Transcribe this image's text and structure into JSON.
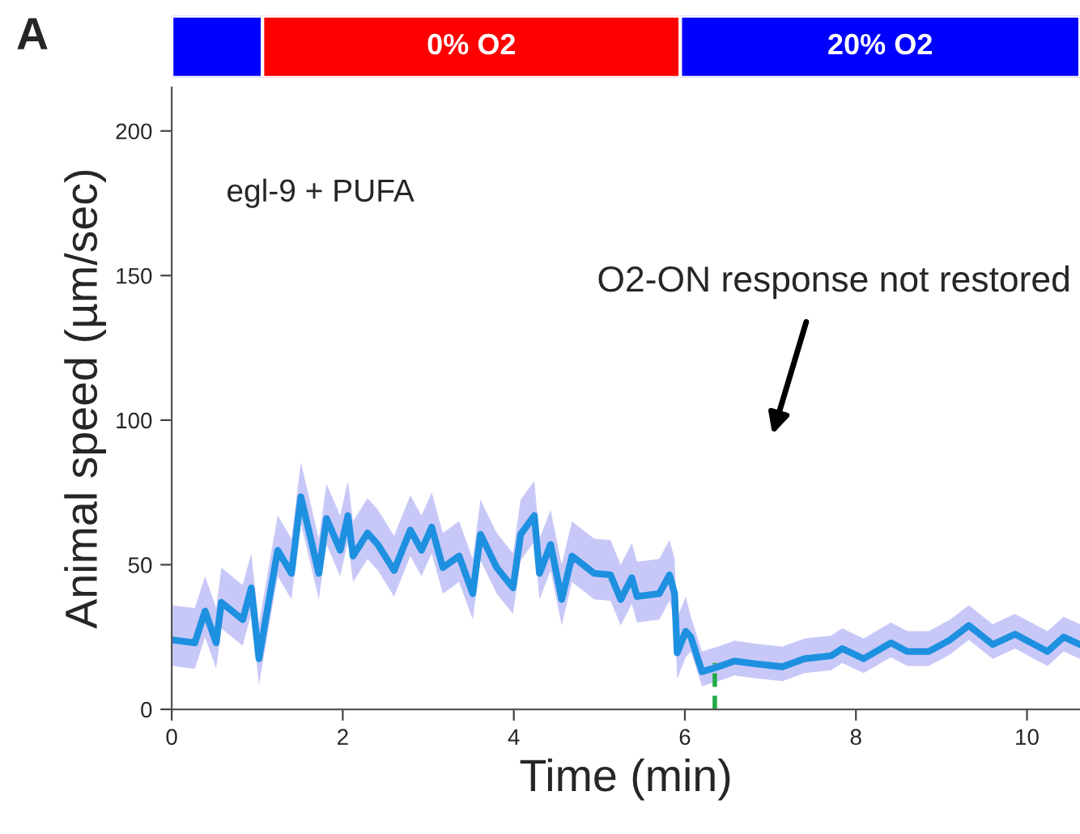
{
  "chart_data": {
    "type": "line",
    "xlabel": "Time (min)",
    "ylabel": "Animal speed (µm/sec)",
    "xlim": [
      0,
      10.62
    ],
    "xticks": [
      0,
      2,
      4,
      6,
      8,
      10
    ],
    "ylim": [
      0,
      215
    ],
    "yticks": [
      0,
      50,
      100,
      150,
      200
    ],
    "grid": false,
    "legend": false,
    "series": [
      {
        "color": "#1e90e0",
        "line_style": "solid",
        "x": [
          0.01,
          0.27,
          0.39,
          0.52,
          0.58,
          0.83,
          0.93,
          1.02,
          1.15,
          1.24,
          1.4,
          1.51,
          1.72,
          1.81,
          1.97,
          2.06,
          2.12,
          2.29,
          2.41,
          2.6,
          2.79,
          2.92,
          3.04,
          3.17,
          3.36,
          3.52,
          3.61,
          3.8,
          3.99,
          4.08,
          4.24,
          4.3,
          4.43,
          4.56,
          4.68,
          4.94,
          5.13,
          5.25,
          5.38,
          5.44,
          5.7,
          5.82,
          5.88,
          5.91,
          6.01,
          6.07,
          6.2,
          6.39,
          6.58,
          6.83,
          7.14,
          7.4,
          7.71,
          7.84,
          8.09,
          8.41,
          8.6,
          8.85,
          9.1,
          9.32,
          9.6,
          9.86,
          10.24,
          10.43,
          10.62
        ],
        "values": [
          24,
          23,
          34,
          23,
          37,
          31,
          42,
          17.5,
          40,
          55,
          47,
          73.5,
          47,
          66,
          55,
          67,
          53,
          61,
          57,
          48,
          62,
          55,
          63,
          49,
          53,
          40,
          60.5,
          49,
          42,
          60.5,
          67,
          47,
          57,
          38,
          53,
          47,
          46.5,
          38,
          45.5,
          39,
          40,
          46.5,
          40,
          19.5,
          27,
          25,
          13,
          14.7,
          16.7,
          15.7,
          14.7,
          17.5,
          18.5,
          21,
          17.5,
          23,
          20,
          20,
          24,
          29,
          22.4,
          26,
          20,
          25,
          22.4
        ],
        "lower": [
          15,
          14,
          25,
          14,
          28,
          22,
          33,
          8.5,
          31,
          46,
          38,
          64.5,
          38,
          57,
          46,
          58,
          44,
          52,
          48,
          39,
          53,
          46,
          54,
          40,
          44,
          31,
          51.5,
          40,
          33,
          51.5,
          58,
          38,
          48,
          29,
          44,
          38,
          37.5,
          29,
          36.5,
          30,
          31,
          37.5,
          31,
          10.5,
          18,
          20,
          8,
          9.7,
          11.7,
          10.7,
          9.7,
          12.5,
          13.5,
          16,
          12.5,
          18,
          15,
          15,
          19,
          24,
          17.4,
          21,
          15,
          20,
          17.4
        ],
        "upper": [
          36,
          35,
          46,
          35,
          49,
          43,
          54,
          29.5,
          52,
          67,
          59,
          85.5,
          59,
          78,
          67,
          79,
          65,
          73,
          69,
          60,
          74,
          67,
          75,
          61,
          65,
          52,
          72.5,
          61,
          54,
          72.5,
          79,
          59,
          69,
          50,
          65,
          59,
          58.5,
          50,
          57.5,
          51,
          52,
          58.5,
          52,
          31.5,
          39,
          32,
          20,
          21.7,
          23.7,
          22.7,
          21.7,
          24.5,
          25.5,
          28,
          24.5,
          30,
          27,
          27,
          31,
          36,
          29.4,
          33,
          27,
          32,
          29.4
        ]
      },
      {
        "color": "#22aa44",
        "line_style": "dashed",
        "x": [
          6.35,
          6.35
        ],
        "values": [
          0,
          16
        ]
      }
    ],
    "annotations": [
      "A",
      "egl-9 + PUFA",
      "O2-ON response not restored",
      "0% O2",
      "20% O2"
    ]
  }
}
